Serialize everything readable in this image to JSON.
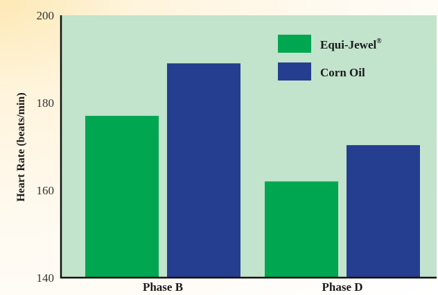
{
  "chart_data": {
    "type": "bar",
    "title": "",
    "xlabel": "",
    "ylabel": "Heart Rate (beats/min)",
    "ylim": [
      140,
      200
    ],
    "yticks": [
      140,
      160,
      180,
      200
    ],
    "categories": [
      "Phase B",
      "Phase D"
    ],
    "series": [
      {
        "name": "Equi-Jewel",
        "name_suffix": "®",
        "color": "#00a650",
        "values": [
          177,
          162
        ]
      },
      {
        "name": "Corn Oil",
        "color": "#253e8f",
        "values": [
          189,
          170.3
        ]
      }
    ],
    "grid": false,
    "legend": "top-right",
    "plot_background": "#c2e3cc"
  }
}
